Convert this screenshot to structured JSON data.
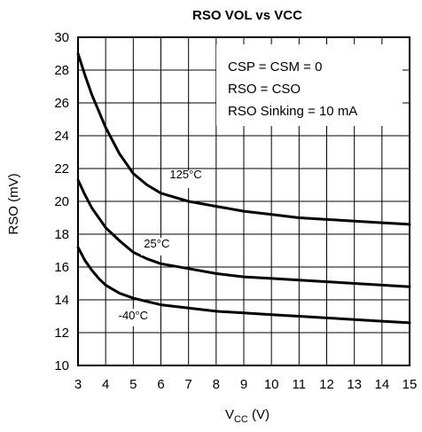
{
  "chart_data": {
    "type": "line",
    "title": "RSO VOL vs VCC",
    "xlabel": {
      "main": "V",
      "sub": "CC",
      "unit": " (V)"
    },
    "ylabel": "RSO (mV)",
    "xlim": [
      3,
      15
    ],
    "ylim": [
      10,
      30
    ],
    "xticks": [
      3,
      4,
      5,
      6,
      7,
      8,
      9,
      10,
      11,
      12,
      13,
      14,
      15
    ],
    "yticks": [
      10,
      12,
      14,
      16,
      18,
      20,
      22,
      24,
      26,
      28,
      30
    ],
    "grid": true,
    "annotations": [
      "CSP = CSM = 0",
      "RSO = CSO",
      "RSO Sinking = 10 mA"
    ],
    "series": [
      {
        "name": "125°C",
        "color": "#000000",
        "x": [
          3,
          3.25,
          3.5,
          3.75,
          4,
          4.5,
          5,
          5.5,
          6,
          7,
          8,
          9,
          10,
          11,
          12,
          13,
          14,
          15
        ],
        "y": [
          29.0,
          27.7,
          26.5,
          25.5,
          24.5,
          22.9,
          21.7,
          21.0,
          20.5,
          20.0,
          19.7,
          19.4,
          19.2,
          19.0,
          18.9,
          18.8,
          18.7,
          18.6
        ]
      },
      {
        "name": "25°C",
        "color": "#000000",
        "x": [
          3,
          3.25,
          3.5,
          3.75,
          4,
          4.5,
          5,
          5.5,
          6,
          7,
          8,
          9,
          10,
          11,
          12,
          13,
          14,
          15
        ],
        "y": [
          21.3,
          20.4,
          19.6,
          19.0,
          18.4,
          17.6,
          16.9,
          16.5,
          16.2,
          15.9,
          15.6,
          15.4,
          15.3,
          15.2,
          15.1,
          15.0,
          14.9,
          14.8
        ]
      },
      {
        "name": "-40°C",
        "color": "#000000",
        "x": [
          3,
          3.25,
          3.5,
          3.75,
          4,
          4.5,
          5,
          5.5,
          6,
          7,
          8,
          9,
          10,
          11,
          12,
          13,
          14,
          15
        ],
        "y": [
          17.2,
          16.4,
          15.8,
          15.3,
          14.9,
          14.4,
          14.1,
          13.9,
          13.7,
          13.5,
          13.3,
          13.2,
          13.1,
          13.0,
          12.9,
          12.8,
          12.7,
          12.6
        ]
      }
    ]
  }
}
